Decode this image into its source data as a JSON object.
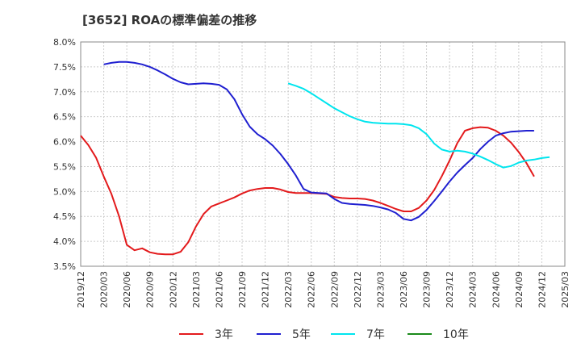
{
  "chart_data": {
    "type": "line",
    "title": "[3652]  ROAの標準偏差の推移",
    "xlabel": "",
    "ylabel": "",
    "grid": true,
    "legend_position": "bottom",
    "ylim": [
      3.5,
      8.0
    ],
    "y_ticks": [
      "8.0%",
      "7.5%",
      "7.0%",
      "6.5%",
      "6.0%",
      "5.5%",
      "5.0%",
      "4.5%",
      "4.0%",
      "3.5%"
    ],
    "x_ticks": [
      "2019/12",
      "2020/03",
      "2020/06",
      "2020/09",
      "2020/12",
      "2021/03",
      "2021/06",
      "2021/09",
      "2021/12",
      "2022/03",
      "2022/06",
      "2022/09",
      "2022/12",
      "2023/03",
      "2023/06",
      "2023/09",
      "2023/12",
      "2024/03",
      "2024/06",
      "2024/09",
      "2024/12",
      "2025/03"
    ],
    "series": [
      {
        "name": "3年",
        "color": "#e31a1c",
        "start": "2019/12",
        "values": [
          6.12,
          5.93,
          5.68,
          5.3,
          4.95,
          4.5,
          3.93,
          3.82,
          3.86,
          3.78,
          3.75,
          3.74,
          3.74,
          3.79,
          3.98,
          4.3,
          4.55,
          4.7,
          4.76,
          4.82,
          4.88,
          4.96,
          5.02,
          5.05,
          5.07,
          5.07,
          5.04,
          4.99,
          4.97,
          4.97,
          4.97,
          4.96,
          4.95,
          4.89,
          4.87,
          4.86,
          4.86,
          4.85,
          4.82,
          4.77,
          4.71,
          4.65,
          4.6,
          4.6,
          4.67,
          4.82,
          5.03,
          5.31,
          5.62,
          5.97,
          6.22,
          6.27,
          6.29,
          6.28,
          6.22,
          6.12,
          5.98,
          5.79,
          5.57,
          5.3
        ]
      },
      {
        "name": "5年",
        "color": "#1f1fd0",
        "start": "2020/03",
        "values": [
          7.55,
          7.58,
          7.6,
          7.6,
          7.58,
          7.55,
          7.5,
          7.43,
          7.35,
          7.26,
          7.19,
          7.15,
          7.16,
          7.17,
          7.16,
          7.14,
          7.05,
          6.85,
          6.55,
          6.3,
          6.15,
          6.05,
          5.92,
          5.75,
          5.55,
          5.32,
          5.05,
          4.98,
          4.97,
          4.96,
          4.85,
          4.77,
          4.75,
          4.74,
          4.73,
          4.71,
          4.68,
          4.64,
          4.57,
          4.45,
          4.42,
          4.49,
          4.63,
          4.81,
          5.0,
          5.2,
          5.38,
          5.53,
          5.67,
          5.85,
          6.0,
          6.12,
          6.17,
          6.2,
          6.21,
          6.22,
          6.22
        ]
      },
      {
        "name": "7年",
        "color": "#00e5ee",
        "start": "2022/03",
        "values": [
          7.17,
          7.12,
          7.06,
          6.97,
          6.87,
          6.77,
          6.67,
          6.59,
          6.51,
          6.45,
          6.4,
          6.38,
          6.37,
          6.36,
          6.36,
          6.35,
          6.33,
          6.27,
          6.15,
          5.96,
          5.84,
          5.8,
          5.82,
          5.8,
          5.76,
          5.7,
          5.63,
          5.55,
          5.48,
          5.51,
          5.58,
          5.62,
          5.64,
          5.67,
          5.69
        ]
      },
      {
        "name": "10年",
        "color": "#1a8a1a",
        "start": "2025/03",
        "values": []
      }
    ]
  }
}
